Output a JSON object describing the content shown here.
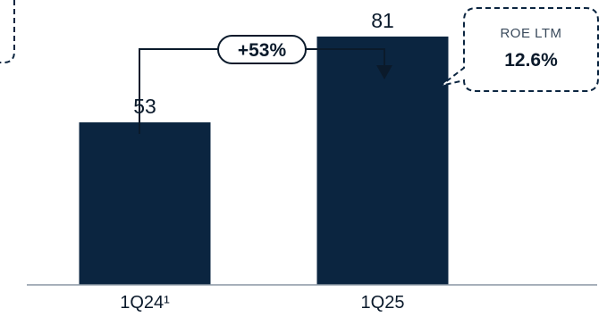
{
  "chart_data": {
    "type": "bar",
    "categories": [
      "1Q24¹",
      "1Q25"
    ],
    "values": [
      53,
      81
    ],
    "ylim": [
      0,
      90
    ],
    "bar_color": "#0b2540",
    "growth_annotation": "+53%",
    "callout": {
      "title": "ROE LTM",
      "value": "12.6%"
    }
  }
}
